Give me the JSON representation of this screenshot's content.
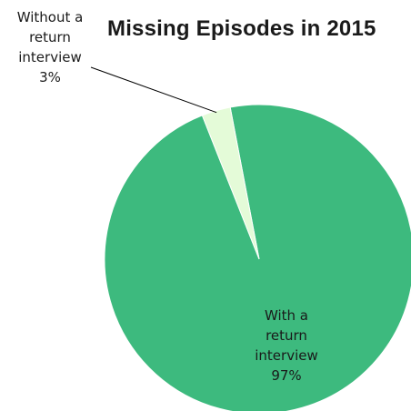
{
  "chart_data": {
    "type": "pie",
    "title": "Missing Episodes in 2015",
    "slices": [
      {
        "label_lines": [
          "With a",
          "return",
          "interview",
          "97%"
        ],
        "value": 97,
        "color": "#3dba7e"
      },
      {
        "label_lines": [
          "Without a",
          "return",
          "interview",
          "3%"
        ],
        "value": 3,
        "color": "#e4fbd8"
      }
    ],
    "legend": "none"
  }
}
